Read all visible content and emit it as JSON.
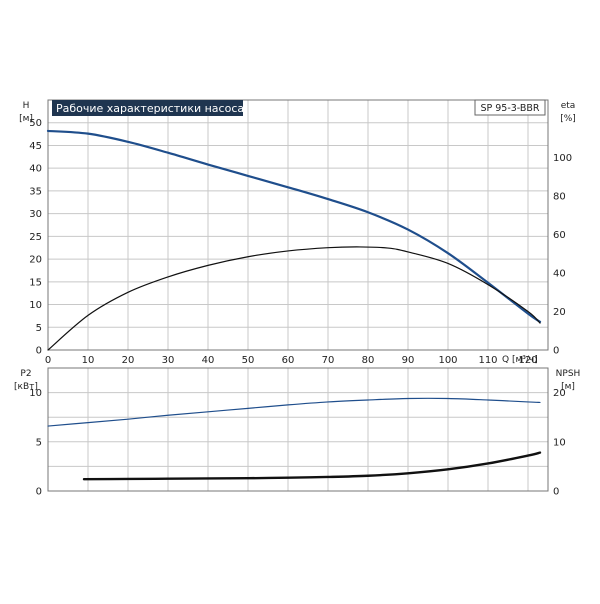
{
  "chart_data": [
    {
      "type": "line",
      "title": "Рабочие характеристики насоса",
      "model": "SP 95-3-BBR",
      "ylabel_left": "H",
      "ylabel_left_unit": "[м]",
      "ylabel_right": "eta",
      "ylabel_right_unit": "[%]",
      "xlabel": "Q [м³/ч]",
      "xlim": [
        0,
        125
      ],
      "ylim_left": [
        0,
        55
      ],
      "ylim_right": [
        0,
        130
      ],
      "x_ticks": [
        0,
        10,
        20,
        30,
        40,
        50,
        60,
        70,
        80,
        90,
        100,
        110,
        120
      ],
      "y_ticks_left": [
        0,
        5,
        10,
        15,
        20,
        25,
        30,
        35,
        40,
        45,
        50
      ],
      "y_ticks_right": [
        0,
        20,
        40,
        60,
        80,
        100
      ],
      "grid": true,
      "series": [
        {
          "axis": "left",
          "color": "#1f4e8c",
          "x": [
            0,
            10,
            20,
            30,
            40,
            50,
            60,
            70,
            80,
            90,
            100,
            110,
            120,
            123
          ],
          "y": [
            48.2,
            47.6,
            45.8,
            43.4,
            40.8,
            38.3,
            35.8,
            33.2,
            30.3,
            26.5,
            21.3,
            14.8,
            8.0,
            6.2
          ]
        },
        {
          "axis": "right",
          "color": "#111111",
          "x": [
            0,
            10,
            20,
            30,
            40,
            50,
            60,
            70,
            78,
            85,
            90,
            100,
            110,
            120,
            123
          ],
          "y": [
            0,
            18,
            30,
            38,
            44,
            48.5,
            51.5,
            53.2,
            53.6,
            53,
            51,
            45,
            34,
            20,
            14
          ]
        }
      ]
    },
    {
      "type": "line",
      "ylabel_left": "P2",
      "ylabel_left_unit": "[кВт]",
      "ylabel_right": "NPSH",
      "ylabel_right_unit": "[м]",
      "xlim": [
        0,
        125
      ],
      "ylim_left": [
        0,
        12.5
      ],
      "ylim_right": [
        0,
        25
      ],
      "y_ticks_left": [
        0,
        5,
        10
      ],
      "y_ticks_right": [
        0,
        10,
        20
      ],
      "grid": true,
      "series": [
        {
          "axis": "left",
          "color": "#1f4e8c",
          "x": [
            0,
            10,
            20,
            30,
            40,
            50,
            60,
            70,
            80,
            90,
            100,
            110,
            120,
            123
          ],
          "y": [
            6.6,
            6.95,
            7.3,
            7.7,
            8.05,
            8.4,
            8.75,
            9.05,
            9.25,
            9.4,
            9.4,
            9.25,
            9.05,
            9.0
          ]
        },
        {
          "axis": "right",
          "color": "#111111",
          "x": [
            9,
            20,
            30,
            40,
            50,
            60,
            70,
            80,
            90,
            100,
            110,
            120,
            123
          ],
          "y": [
            2.4,
            2.45,
            2.5,
            2.55,
            2.6,
            2.7,
            2.85,
            3.1,
            3.6,
            4.4,
            5.6,
            7.2,
            7.8
          ]
        }
      ]
    }
  ]
}
